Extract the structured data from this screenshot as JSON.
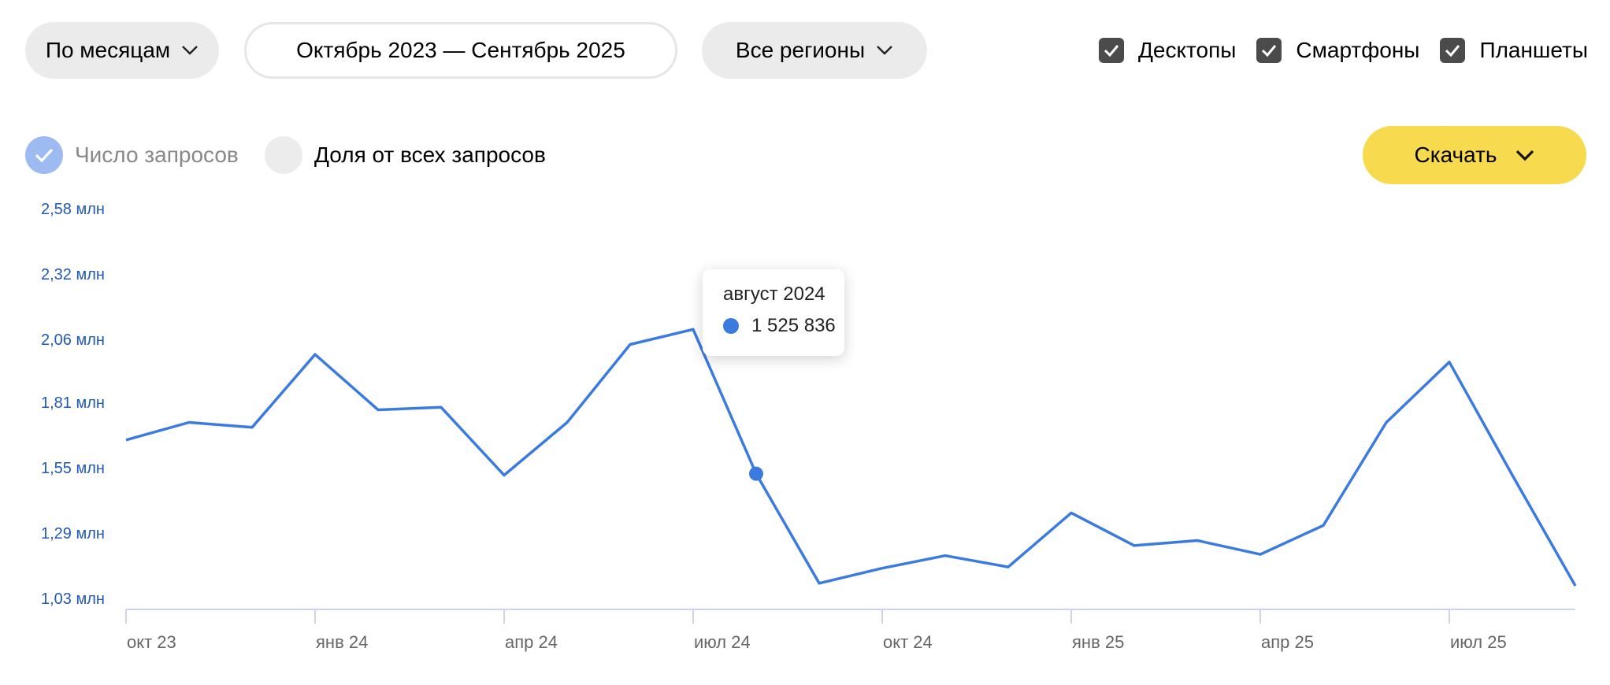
{
  "filters": {
    "period_label": "По месяцам",
    "date_range": "Октябрь 2023 — Сентябрь 2025",
    "region_label": "Все регионы"
  },
  "devices": [
    {
      "label": "Десктопы",
      "checked": true
    },
    {
      "label": "Смартфоны",
      "checked": true
    },
    {
      "label": "Планшеты",
      "checked": true
    }
  ],
  "modes": {
    "count_label": "Число запросов",
    "count_selected": true,
    "share_label": "Доля от всех запросов",
    "share_selected": false
  },
  "download_label": "Скачать",
  "tooltip": {
    "title": "август 2024",
    "value": "1 525 836"
  },
  "colors": {
    "line": "#3b7be0",
    "axis_label": "#2158b8",
    "download": "#f8da4e"
  },
  "chart_data": {
    "type": "line",
    "x": [
      "2023-10",
      "2023-11",
      "2023-12",
      "2024-01",
      "2024-02",
      "2024-03",
      "2024-04",
      "2024-05",
      "2024-06",
      "2024-07",
      "2024-08",
      "2024-09",
      "2024-10",
      "2024-11",
      "2024-12",
      "2025-01",
      "2025-02",
      "2025-03",
      "2025-04",
      "2025-05",
      "2025-06",
      "2025-07",
      "2025-08",
      "2025-09"
    ],
    "series": [
      {
        "values": [
          1.66,
          1.73,
          1.71,
          2.0,
          1.78,
          1.79,
          1.52,
          1.73,
          2.04,
          2.1,
          1.525836,
          1.09,
          1.15,
          1.2,
          1.155,
          1.37,
          1.24,
          1.26,
          1.205,
          1.32,
          1.73,
          1.97,
          1.52,
          1.08
        ]
      }
    ],
    "y_ticks": [
      "2,58 млн",
      "2,32 млн",
      "2,06 млн",
      "1,81 млн",
      "1,55 млн",
      "1,29 млн",
      "1,03 млн"
    ],
    "y_tick_values": [
      2.58,
      2.32,
      2.06,
      1.81,
      1.55,
      1.29,
      1.03
    ],
    "x_ticks": [
      {
        "index": 0,
        "label": "окт 23"
      },
      {
        "index": 3,
        "label": "янв 24"
      },
      {
        "index": 6,
        "label": "апр 24"
      },
      {
        "index": 9,
        "label": "июл 24"
      },
      {
        "index": 12,
        "label": "окт 24"
      },
      {
        "index": 15,
        "label": "янв 25"
      },
      {
        "index": 18,
        "label": "апр 25"
      },
      {
        "index": 21,
        "label": "июл 25"
      }
    ],
    "highlight_index": 10,
    "ylim": [
      1.03,
      2.58
    ],
    "grid": false
  }
}
